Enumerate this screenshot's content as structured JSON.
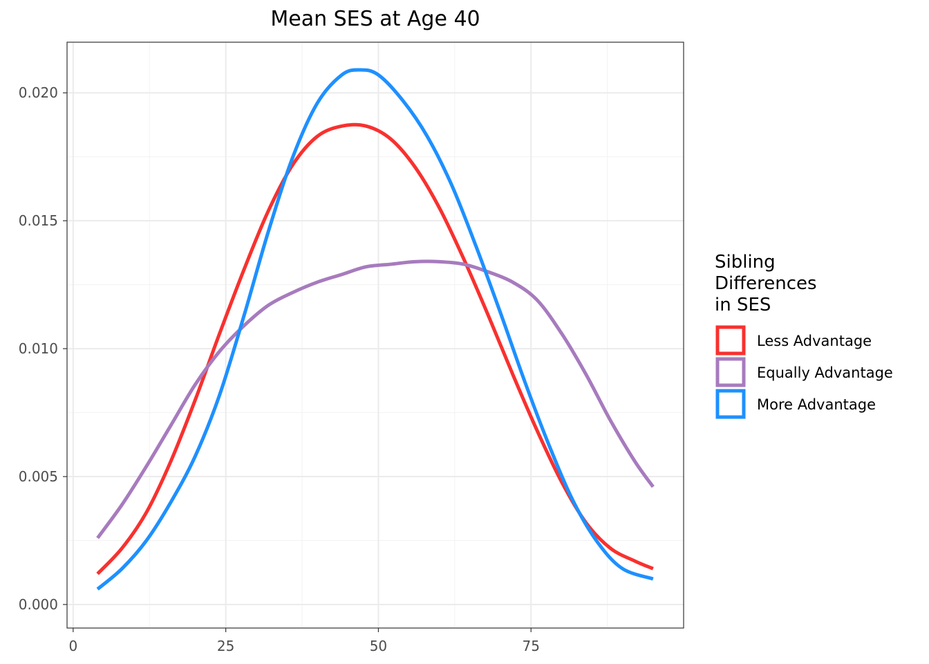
{
  "chart_data": {
    "type": "line",
    "title": "Mean SES at Age 40",
    "xlabel": "",
    "ylabel": "",
    "xlim": [
      -1,
      100
    ],
    "ylim": [
      -0.00092,
      0.02198
    ],
    "x_ticks": [
      0,
      25,
      50,
      75
    ],
    "x_tick_labels": [
      "0",
      "25",
      "50",
      "75"
    ],
    "y_ticks": [
      0.0,
      0.005,
      0.01,
      0.015,
      0.02
    ],
    "y_tick_labels": [
      "0.000",
      "0.005",
      "0.010",
      "0.015",
      "0.020"
    ],
    "grid": true,
    "legend": {
      "title": [
        "Sibling",
        "Differences",
        "in SES"
      ],
      "placement": "right"
    },
    "series": [
      {
        "name": "Less Advantage",
        "color": "#F8312F",
        "x": [
          4,
          8,
          12,
          16,
          20,
          24,
          28,
          32,
          36,
          40,
          44,
          48,
          52,
          56,
          60,
          64,
          68,
          72,
          76,
          80,
          84,
          88,
          92,
          95
        ],
        "y": [
          0.0012,
          0.0022,
          0.0036,
          0.0056,
          0.008,
          0.0106,
          0.0131,
          0.0154,
          0.0172,
          0.0183,
          0.0187,
          0.0187,
          0.0182,
          0.0171,
          0.0155,
          0.0135,
          0.0113,
          0.009,
          0.0068,
          0.0048,
          0.0032,
          0.0022,
          0.0017,
          0.0014
        ]
      },
      {
        "name": "Equally Advantage",
        "color": "#A77BBE",
        "x": [
          4,
          8,
          12,
          16,
          20,
          24,
          28,
          32,
          36,
          40,
          44,
          48,
          52,
          56,
          60,
          64,
          68,
          72,
          76,
          80,
          84,
          88,
          92,
          95
        ],
        "y": [
          0.0026,
          0.0039,
          0.0054,
          0.007,
          0.0086,
          0.0099,
          0.0109,
          0.0117,
          0.0122,
          0.0126,
          0.0129,
          0.0132,
          0.0133,
          0.0134,
          0.0134,
          0.0133,
          0.013,
          0.0126,
          0.0119,
          0.0106,
          0.009,
          0.0072,
          0.0056,
          0.0046
        ]
      },
      {
        "name": "More Advantage",
        "color": "#1E90FF",
        "x": [
          4,
          8,
          12,
          16,
          20,
          24,
          28,
          32,
          36,
          40,
          44,
          47,
          50,
          54,
          58,
          62,
          66,
          70,
          74,
          78,
          82,
          86,
          90,
          95
        ],
        "y": [
          0.0006,
          0.0014,
          0.0025,
          0.004,
          0.0058,
          0.0082,
          0.0113,
          0.0146,
          0.0175,
          0.0196,
          0.0207,
          0.0209,
          0.0207,
          0.0197,
          0.0183,
          0.0164,
          0.014,
          0.0114,
          0.0087,
          0.0062,
          0.004,
          0.0024,
          0.0014,
          0.001
        ]
      }
    ]
  }
}
